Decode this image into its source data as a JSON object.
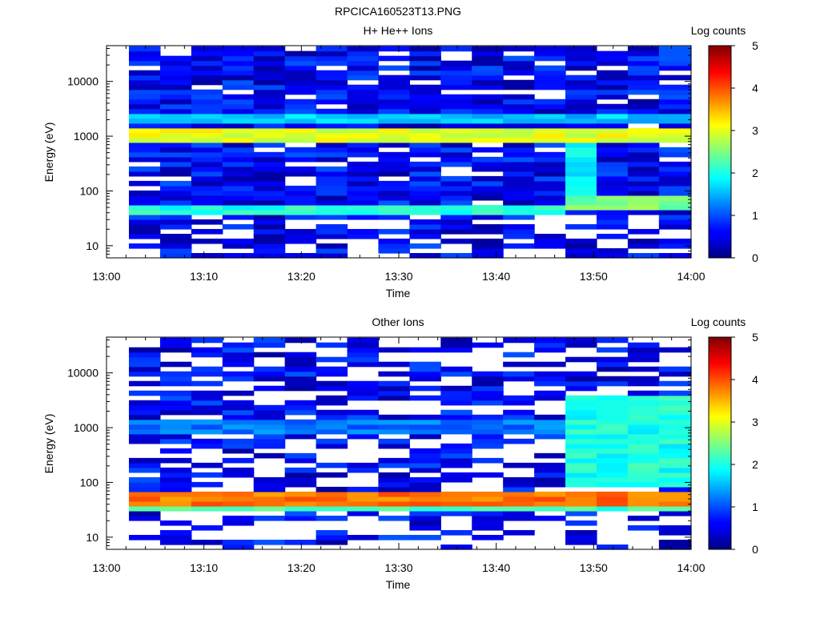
{
  "figure_title": "RPCICA160523T13.PNG",
  "chart_data": [
    {
      "type": "heatmap",
      "title": "H+ He++ Ions",
      "xlabel": "Time",
      "ylabel": "Energy (eV)",
      "x_ticks": [
        "13:00",
        "13:10",
        "13:20",
        "13:30",
        "13:40",
        "13:50",
        "14:00"
      ],
      "x_range_minutes": [
        0,
        60
      ],
      "y_scale": "log",
      "y_ticks": [
        "10",
        "100",
        "1000",
        "10000"
      ],
      "y_range": [
        6,
        45000
      ],
      "data_x_start_minutes": 2.3,
      "colorbar": {
        "label": "Log counts",
        "ticks": [
          "0",
          "1",
          "2",
          "3",
          "4",
          "5"
        ],
        "range": [
          0,
          5
        ]
      },
      "time_minutes": [
        2.3,
        5.5,
        8.7,
        11.9,
        15.1,
        18.3,
        21.5,
        24.7,
        27.9,
        31.1,
        34.3,
        37.5,
        40.7,
        43.9,
        47.1,
        50.3,
        53.5,
        56.7,
        60.0
      ],
      "features": [
        {
          "energy": [
            700,
            1500
          ],
          "level": 3.0,
          "from_minutes": 2.3,
          "to_minutes": 60
        },
        {
          "energy": [
            1800,
            2600
          ],
          "level": 1.6,
          "from_minutes": 2.3,
          "to_minutes": 60
        },
        {
          "energy": [
            40,
            55
          ],
          "level": 2.0,
          "from_minutes": 2.3,
          "to_minutes": 47
        },
        {
          "energy": [
            45,
            80
          ],
          "level": 2.5,
          "from_minutes": 47,
          "to_minutes": 60
        },
        {
          "energy": [
            80,
            900
          ],
          "level": 1.8,
          "from_minutes": 47,
          "to_minutes": 50.3
        }
      ]
    },
    {
      "type": "heatmap",
      "title": "Other Ions",
      "xlabel": "Time",
      "ylabel": "Energy (eV)",
      "x_ticks": [
        "13:00",
        "13:10",
        "13:20",
        "13:30",
        "13:40",
        "13:50",
        "14:00"
      ],
      "x_range_minutes": [
        0,
        60
      ],
      "y_scale": "log",
      "y_ticks": [
        "10",
        "100",
        "1000",
        "10000"
      ],
      "y_range": [
        6,
        45000
      ],
      "data_x_start_minutes": 2.3,
      "colorbar": {
        "label": "Log counts",
        "ticks": [
          "0",
          "1",
          "2",
          "3",
          "4",
          "5"
        ],
        "range": [
          0,
          5
        ]
      },
      "time_minutes": [
        2.3,
        5.5,
        8.7,
        11.9,
        15.1,
        18.3,
        21.5,
        24.7,
        27.9,
        31.1,
        34.3,
        37.5,
        40.7,
        43.9,
        47.1,
        50.3,
        53.5,
        56.7,
        60.0
      ],
      "features": [
        {
          "energy": [
            38,
            62
          ],
          "level": 3.8,
          "from_minutes": 2.3,
          "to_minutes": 60
        },
        {
          "energy": [
            30,
            38
          ],
          "level": 2.2,
          "from_minutes": 2.3,
          "to_minutes": 60
        },
        {
          "energy": [
            800,
            1300
          ],
          "level": 1.2,
          "from_minutes": 2.3,
          "to_minutes": 47
        },
        {
          "energy": [
            80,
            4000
          ],
          "level": 2.0,
          "from_minutes": 47,
          "to_minutes": 60
        }
      ]
    }
  ]
}
